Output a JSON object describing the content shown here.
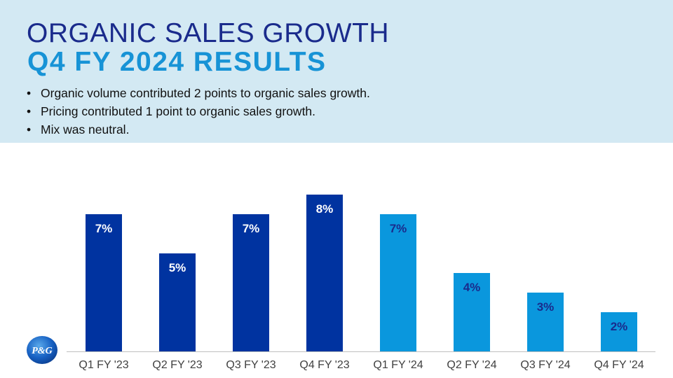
{
  "header": {
    "title_line1": "ORGANIC SALES GROWTH",
    "title_line2": "Q4 FY 2024 RESULTS",
    "bullets": [
      "Organic volume contributed 2 points to organic sales growth.",
      "Pricing contributed 1 point to organic sales growth.",
      "Mix was neutral."
    ]
  },
  "logo": {
    "text": "P&G",
    "icon": "pg-logo-icon"
  },
  "colors": {
    "dark_bar": "#0033a0",
    "light_bar": "#0a97dd",
    "header_bg": "#d3e9f3"
  },
  "chart_data": {
    "type": "bar",
    "categories": [
      "Q1 FY '23",
      "Q2 FY '23",
      "Q3 FY '23",
      "Q4 FY '23",
      "Q1 FY '24",
      "Q2 FY '24",
      "Q3 FY '24",
      "Q4 FY '24"
    ],
    "values": [
      7,
      5,
      7,
      8,
      7,
      4,
      3,
      2
    ],
    "data_labels": [
      "7%",
      "5%",
      "7%",
      "8%",
      "7%",
      "4%",
      "3%",
      "2%"
    ],
    "bar_colors": [
      "#0033a0",
      "#0033a0",
      "#0033a0",
      "#0033a0",
      "#0a97dd",
      "#0a97dd",
      "#0a97dd",
      "#0a97dd"
    ],
    "label_colors": [
      "#ffffff",
      "#ffffff",
      "#ffffff",
      "#ffffff",
      "#1a2b8c",
      "#1a2b8c",
      "#1a2b8c",
      "#1a2b8c"
    ],
    "title": "",
    "xlabel": "",
    "ylabel": "",
    "ylim": [
      0,
      8
    ],
    "grid": false,
    "legend": "none"
  }
}
